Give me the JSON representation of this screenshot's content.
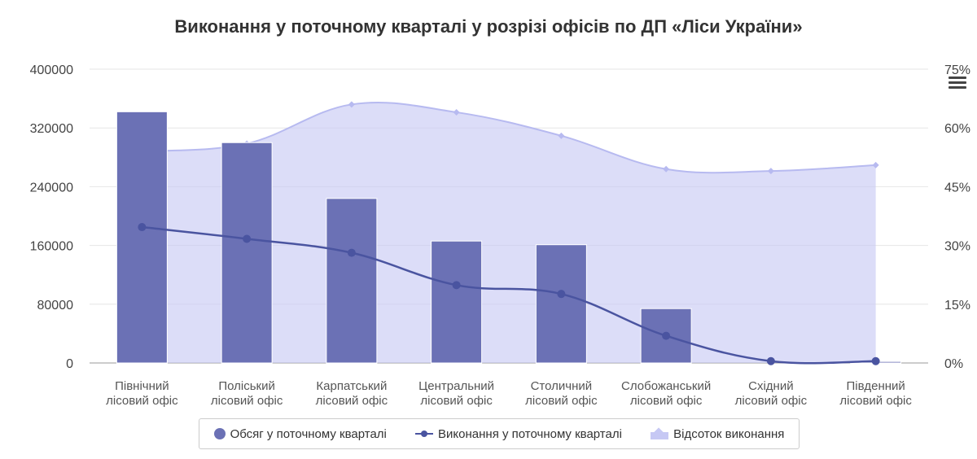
{
  "chart_data": {
    "type": "bar",
    "title": "Виконання у поточному кварталі у розрізі офісів по ДП «Ліси України»",
    "categories": [
      [
        "Північний",
        "лісовий офіс"
      ],
      [
        "Поліський",
        "лісовий офіс"
      ],
      [
        "Карпатський",
        "лісовий офіс"
      ],
      [
        "Центральний",
        "лісовий офіс"
      ],
      [
        "Столичний",
        "лісовий офіс"
      ],
      [
        "Слобожанський",
        "лісовий офіс"
      ],
      [
        "Східний",
        "лісовий офіс"
      ],
      [
        "Південний",
        "лісовий офіс"
      ]
    ],
    "y_left": {
      "ylim": [
        0,
        400000
      ],
      "ticks": [
        "0",
        "80000",
        "160000",
        "240000",
        "320000",
        "400000"
      ]
    },
    "y_right": {
      "ylim": [
        0,
        75
      ],
      "ticks": [
        "0%",
        "15%",
        "30%",
        "45%",
        "60%",
        "75%"
      ]
    },
    "series": [
      {
        "name": "Обсяг у поточному кварталі",
        "type": "bar",
        "axis": "left",
        "color": "#6b71b5",
        "values": [
          342000,
          300000,
          224000,
          166000,
          161000,
          74000,
          0,
          2000
        ]
      },
      {
        "name": "Виконання у поточному кварталі",
        "type": "line",
        "axis": "left",
        "color": "#4a54a0",
        "values": [
          185000,
          169000,
          150000,
          106000,
          94000,
          37000,
          2500,
          2500
        ]
      },
      {
        "name": "Відсоток виконання",
        "type": "area",
        "axis": "right",
        "color": "#c6c8f4",
        "values": [
          54,
          56,
          66,
          64,
          58,
          49.5,
          49,
          50.5
        ]
      }
    ],
    "legend_position": "bottom"
  }
}
